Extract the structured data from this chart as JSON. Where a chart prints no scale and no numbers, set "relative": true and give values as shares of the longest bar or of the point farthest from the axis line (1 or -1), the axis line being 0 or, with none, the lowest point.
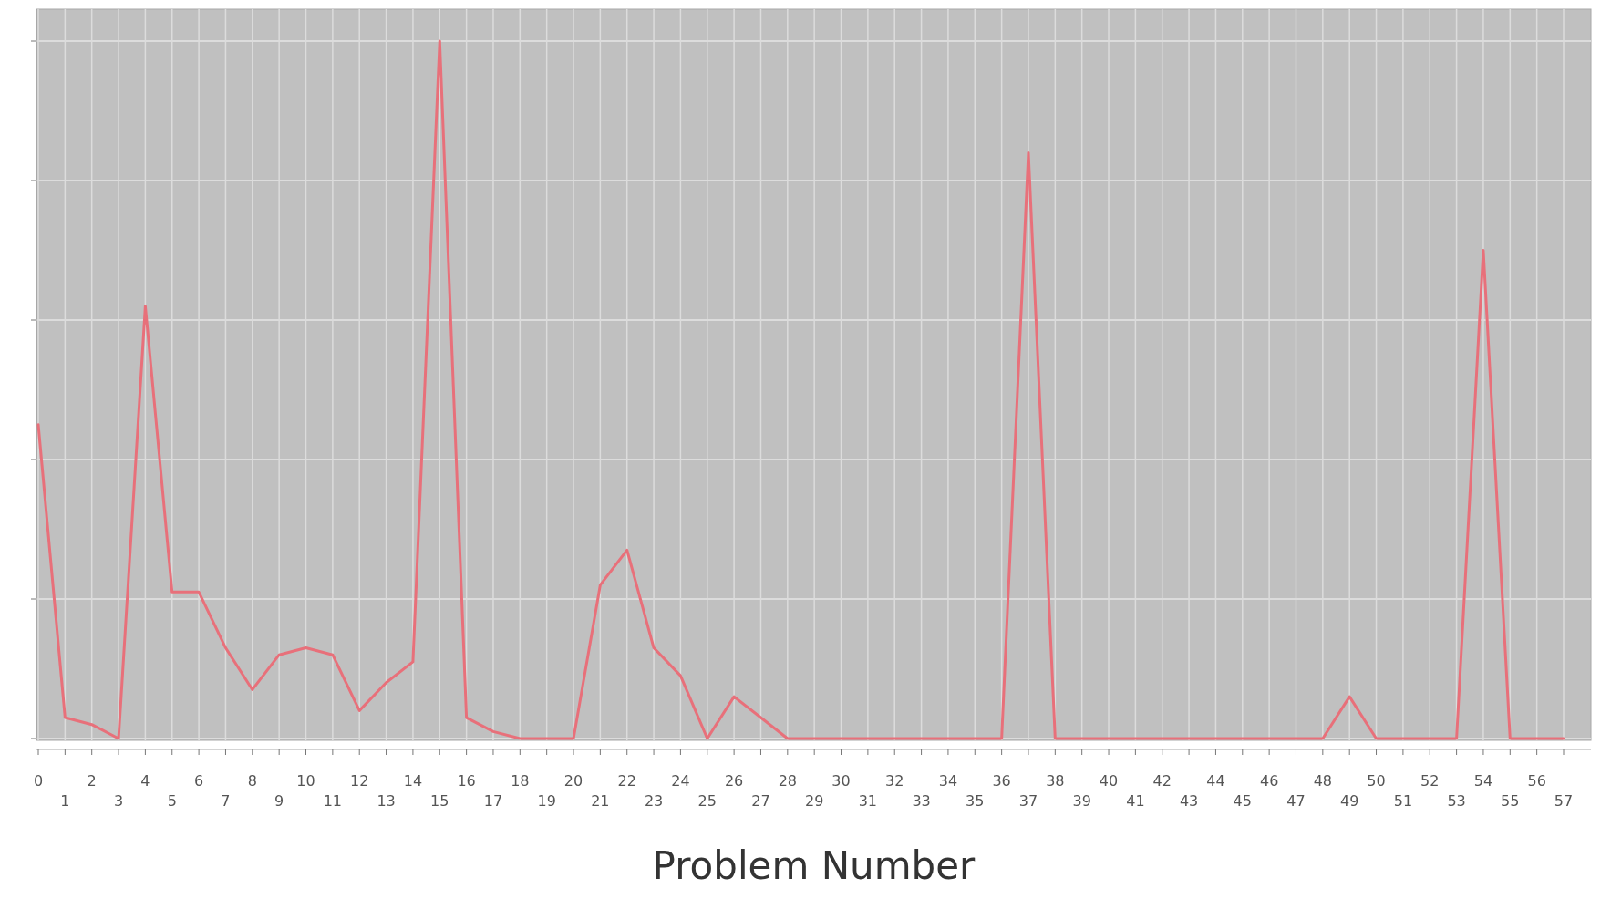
{
  "chart_data": {
    "type": "line",
    "xlabel": "Problem Number",
    "relative": true,
    "grid": true,
    "marker": "none",
    "categories": [
      "0",
      "1",
      "2",
      "3",
      "4",
      "5",
      "6",
      "7",
      "8",
      "9",
      "10",
      "11",
      "12",
      "13",
      "14",
      "15",
      "16",
      "17",
      "18",
      "19",
      "20",
      "21",
      "22",
      "23",
      "24",
      "25",
      "26",
      "27",
      "28",
      "29",
      "30",
      "31",
      "32",
      "33",
      "34",
      "35",
      "36",
      "37",
      "38",
      "39",
      "40",
      "41",
      "42",
      "43",
      "44",
      "45",
      "46",
      "47",
      "48",
      "49",
      "50",
      "51",
      "52",
      "53",
      "54",
      "55",
      "56",
      "57"
    ],
    "series": [
      {
        "color": "#e8707a",
        "values": [
          0.45,
          0.03,
          0.02,
          0,
          0.62,
          0.21,
          0.21,
          0.13,
          0.07,
          0.12,
          0.13,
          0.12,
          0.04,
          0.08,
          0.11,
          1,
          0.03,
          0.01,
          0,
          0,
          0,
          0.22,
          0.27,
          0.13,
          0.09,
          0,
          0.06,
          0.03,
          0,
          0,
          0,
          0,
          0,
          0,
          0,
          0,
          0,
          0.84,
          0,
          0,
          0,
          0,
          0,
          0,
          0,
          0,
          0,
          0,
          0,
          0.06,
          0,
          0,
          0,
          0,
          0.7,
          0,
          0,
          0
        ]
      }
    ]
  }
}
